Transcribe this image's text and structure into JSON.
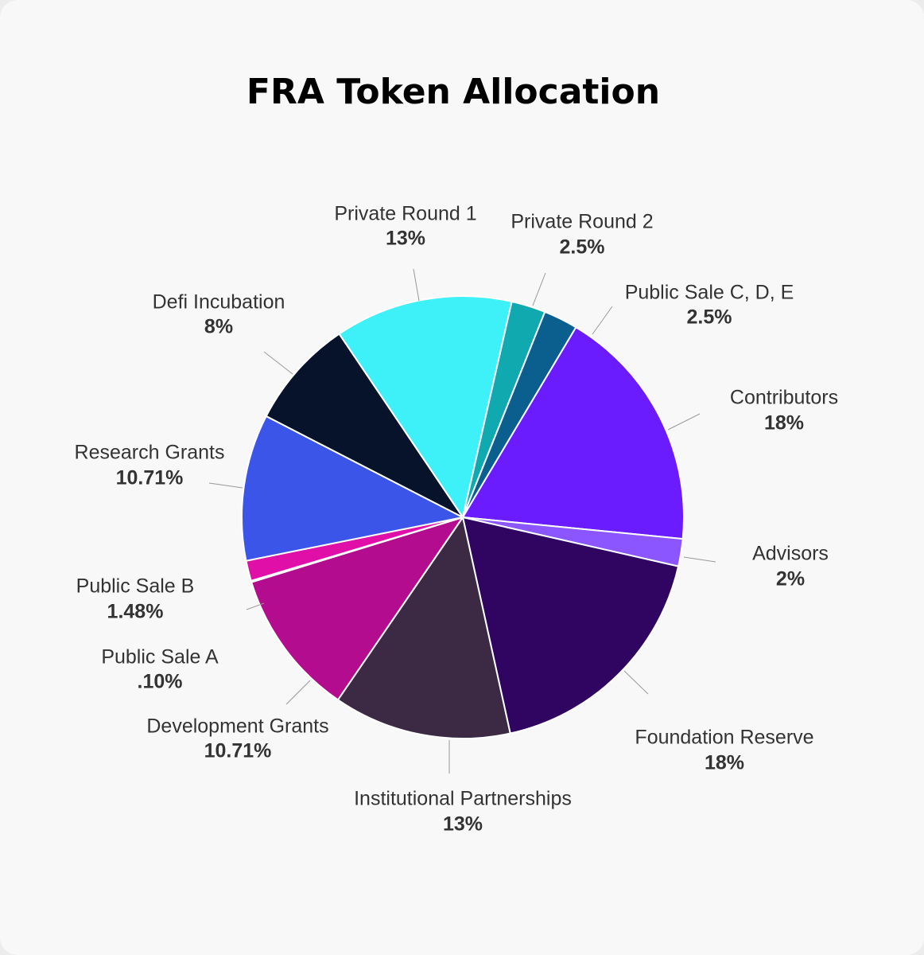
{
  "chart_data": {
    "type": "pie",
    "title": "FRA Token Allocation",
    "categories": [
      "Private Round 1",
      "Private Round 2",
      "Public Sale C, D, E",
      "Contributors",
      "Advisors",
      "Foundation Reserve",
      "Institutional Partnerships",
      "Development Grants",
      "Public Sale A",
      "Public Sale B",
      "Research Grants",
      "Defi Incubation"
    ],
    "values": [
      13,
      2.5,
      2.5,
      18,
      2,
      18,
      13,
      10.71,
      0.1,
      1.48,
      10.71,
      8
    ],
    "value_labels": [
      "13%",
      "2.5%",
      "2.5%",
      "18%",
      "2%",
      "18%",
      "13%",
      "10.71%",
      ".10%",
      "1.48%",
      "10.71%",
      "8%"
    ],
    "colors": [
      "#3ef0f7",
      "#10a9b0",
      "#0a5f8f",
      "#6a1cff",
      "#8b55ff",
      "#300561",
      "#3c2a45",
      "#b30c8e",
      "#d4f04a",
      "#e00fa8",
      "#3b55e8",
      "#07122b"
    ]
  }
}
